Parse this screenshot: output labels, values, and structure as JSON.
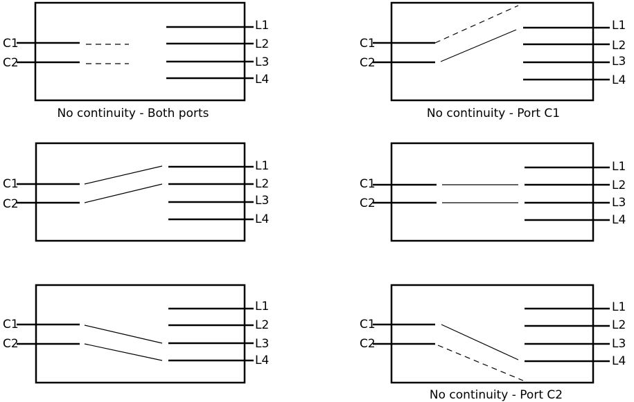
{
  "labels": {
    "c1": "C1",
    "c2": "C2",
    "l1": "L1",
    "l2": "L2",
    "l3": "L3",
    "l4": "L4"
  },
  "panels": [
    {
      "caption": "No continuity - Both ports",
      "connections": [
        {
          "from": "C1",
          "to": null
        },
        {
          "from": "C2",
          "to": null
        }
      ]
    },
    {
      "caption": "No continuity - Port C1",
      "connections": [
        {
          "from": "C1",
          "to": null
        },
        {
          "from": "C2",
          "to": "L1"
        }
      ]
    },
    {
      "caption": "",
      "connections": [
        {
          "from": "C1",
          "to": "L1"
        },
        {
          "from": "C2",
          "to": "L2"
        }
      ]
    },
    {
      "caption": "",
      "connections": [
        {
          "from": "C1",
          "to": "L2"
        },
        {
          "from": "C2",
          "to": "L3"
        }
      ]
    },
    {
      "caption": "",
      "connections": [
        {
          "from": "C1",
          "to": "L3"
        },
        {
          "from": "C2",
          "to": "L4"
        }
      ]
    },
    {
      "caption": "No continuity - Port C2",
      "connections": [
        {
          "from": "C1",
          "to": "L4"
        },
        {
          "from": "C2",
          "to": null
        }
      ]
    }
  ],
  "colors": {
    "stroke": "#000000",
    "background": "#ffffff"
  }
}
